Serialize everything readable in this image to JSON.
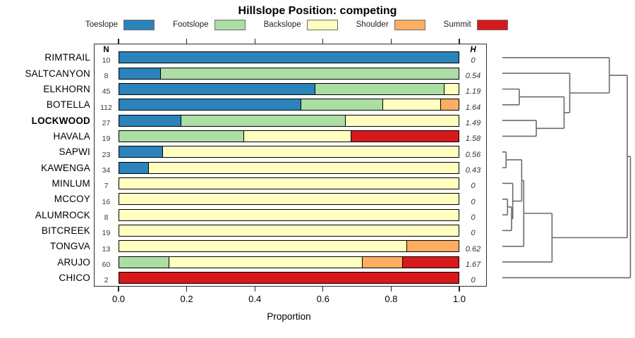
{
  "title": "Hillslope Position: competing",
  "columns": {
    "n_header": "N",
    "h_header": "H"
  },
  "x_axis": {
    "label": "Proportion",
    "ticks": [
      "0.0",
      "0.2",
      "0.4",
      "0.6",
      "0.8",
      "1.0"
    ],
    "tick_values": [
      0,
      0.2,
      0.4,
      0.6,
      0.8,
      1.0
    ],
    "range": [
      0,
      1
    ]
  },
  "legend": {
    "items": [
      {
        "label": "Toeslope",
        "color": "#2b83ba"
      },
      {
        "label": "Footslope",
        "color": "#abdda4"
      },
      {
        "label": "Backslope",
        "color": "#ffffbf"
      },
      {
        "label": "Shoulder",
        "color": "#fdae61"
      },
      {
        "label": "Summit",
        "color": "#d7191c"
      }
    ]
  },
  "chart_data": {
    "type": "bar",
    "subtype": "horizontal-stacked-proportion",
    "title": "Hillslope Position: competing",
    "xlabel": "Proportion",
    "xlim": [
      0,
      1
    ],
    "categories": [
      "Toeslope",
      "Footslope",
      "Backslope",
      "Shoulder",
      "Summit"
    ],
    "colors": {
      "Toeslope": "#2b83ba",
      "Footslope": "#abdda4",
      "Backslope": "#ffffbf",
      "Shoulder": "#fdae61",
      "Summit": "#d7191c"
    },
    "rows": [
      {
        "label": "RIMTRAIL",
        "n": 10,
        "h": "0",
        "bold": false,
        "segments": [
          {
            "category": "Toeslope",
            "value": 1.0
          }
        ]
      },
      {
        "label": "SALTCANYON",
        "n": 8,
        "h": "0.54",
        "bold": false,
        "segments": [
          {
            "category": "Toeslope",
            "value": 0.125
          },
          {
            "category": "Footslope",
            "value": 0.875
          }
        ]
      },
      {
        "label": "ELKHORN",
        "n": 45,
        "h": "1.19",
        "bold": false,
        "segments": [
          {
            "category": "Toeslope",
            "value": 0.578
          },
          {
            "category": "Footslope",
            "value": 0.378
          },
          {
            "category": "Backslope",
            "value": 0.044
          }
        ]
      },
      {
        "label": "BOTELLA",
        "n": 112,
        "h": "1.64",
        "bold": false,
        "segments": [
          {
            "category": "Toeslope",
            "value": 0.536
          },
          {
            "category": "Footslope",
            "value": 0.241
          },
          {
            "category": "Backslope",
            "value": 0.17
          },
          {
            "category": "Shoulder",
            "value": 0.053
          }
        ]
      },
      {
        "label": "LOCKWOOD",
        "n": 27,
        "h": "1.49",
        "bold": true,
        "segments": [
          {
            "category": "Toeslope",
            "value": 0.185
          },
          {
            "category": "Footslope",
            "value": 0.481
          },
          {
            "category": "Backslope",
            "value": 0.334
          }
        ]
      },
      {
        "label": "HAVALA",
        "n": 19,
        "h": "1.58",
        "bold": false,
        "segments": [
          {
            "category": "Footslope",
            "value": 0.368
          },
          {
            "category": "Backslope",
            "value": 0.316
          },
          {
            "category": "Summit",
            "value": 0.316
          }
        ]
      },
      {
        "label": "SAPWI",
        "n": 23,
        "h": "0.56",
        "bold": false,
        "segments": [
          {
            "category": "Toeslope",
            "value": 0.13
          },
          {
            "category": "Backslope",
            "value": 0.87
          }
        ]
      },
      {
        "label": "KAWENGA",
        "n": 34,
        "h": "0.43",
        "bold": false,
        "segments": [
          {
            "category": "Toeslope",
            "value": 0.088
          },
          {
            "category": "Backslope",
            "value": 0.912
          }
        ]
      },
      {
        "label": "MINLUM",
        "n": 7,
        "h": "0",
        "bold": false,
        "segments": [
          {
            "category": "Backslope",
            "value": 1.0
          }
        ]
      },
      {
        "label": "MCCOY",
        "n": 16,
        "h": "0",
        "bold": false,
        "segments": [
          {
            "category": "Backslope",
            "value": 1.0
          }
        ]
      },
      {
        "label": "ALUMROCK",
        "n": 8,
        "h": "0",
        "bold": false,
        "segments": [
          {
            "category": "Backslope",
            "value": 1.0
          }
        ]
      },
      {
        "label": "BITCREEK",
        "n": 19,
        "h": "0",
        "bold": false,
        "segments": [
          {
            "category": "Backslope",
            "value": 1.0
          }
        ]
      },
      {
        "label": "TONGVA",
        "n": 13,
        "h": "0.62",
        "bold": false,
        "segments": [
          {
            "category": "Backslope",
            "value": 0.846
          },
          {
            "category": "Shoulder",
            "value": 0.154
          }
        ]
      },
      {
        "label": "ARUJO",
        "n": 60,
        "h": "1.67",
        "bold": false,
        "segments": [
          {
            "category": "Footslope",
            "value": 0.15
          },
          {
            "category": "Backslope",
            "value": 0.567
          },
          {
            "category": "Shoulder",
            "value": 0.117
          },
          {
            "category": "Summit",
            "value": 0.166
          }
        ]
      },
      {
        "label": "CHICO",
        "n": 2,
        "h": "0",
        "bold": false,
        "segments": [
          {
            "category": "Summit",
            "value": 1.0
          }
        ]
      }
    ],
    "dendrogram": {
      "orientation": "right-of-bars",
      "merges": [
        {
          "id": "m1",
          "a": "SAPWI",
          "b": "KAWENGA",
          "height": 0.029
        },
        {
          "id": "m2",
          "a": "MCCOY",
          "b": "ALUMROCK",
          "height": 0.04
        },
        {
          "id": "m3",
          "a": "m2",
          "b": "BITCREEK",
          "height": 0.072
        },
        {
          "id": "m4",
          "a": "MINLUM",
          "b": "m3",
          "height": 0.081
        },
        {
          "id": "m5",
          "a": "m1",
          "b": "m4",
          "height": 0.151
        },
        {
          "id": "m6",
          "a": "m5",
          "b": "TONGVA",
          "height": 0.167
        },
        {
          "id": "m7",
          "a": "m6",
          "b": "ARUJO",
          "height": 0.388
        },
        {
          "id": "m8",
          "a": "ELKHORN",
          "b": "BOTELLA",
          "height": 0.132
        },
        {
          "id": "m9",
          "a": "LOCKWOOD",
          "b": "HAVALA",
          "height": 0.265
        },
        {
          "id": "m10",
          "a": "m8",
          "b": "m9",
          "height": 0.482
        },
        {
          "id": "m11",
          "a": "SALTCANYON",
          "b": "m10",
          "height": 0.526
        },
        {
          "id": "m12",
          "a": "RIMTRAIL",
          "b": "m11",
          "height": 0.835
        },
        {
          "id": "m13",
          "a": "m12",
          "b": "m7",
          "height": 0.975
        },
        {
          "id": "m14",
          "a": "m13",
          "b": "CHICO",
          "height": 1.0
        }
      ]
    }
  }
}
